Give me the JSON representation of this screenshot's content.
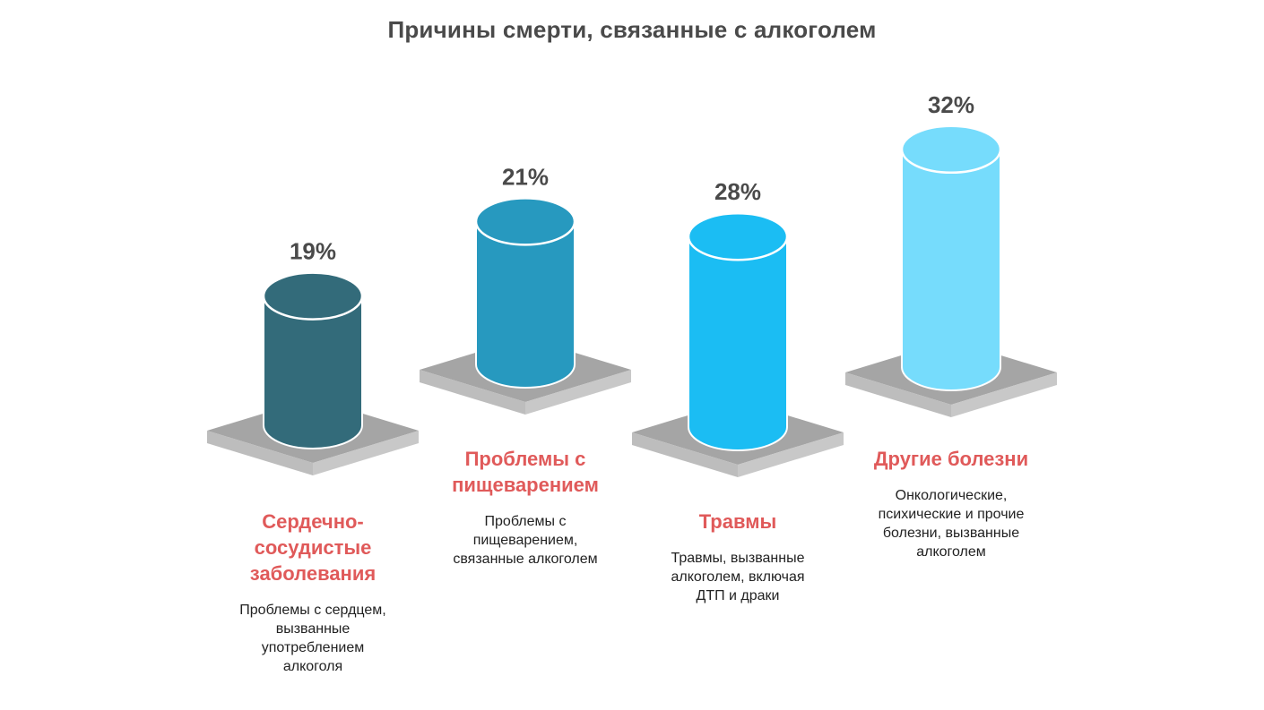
{
  "chart_data": {
    "type": "bar",
    "title": "Причины смерти, связанные с алкоголем",
    "categories": [
      "Сердечно-сосудистые заболевания",
      "Проблемы с пищеварением",
      "Травмы",
      "Другие болезни"
    ],
    "values": [
      19,
      21,
      28,
      32
    ],
    "value_labels": [
      "19%",
      "21%",
      "28%",
      "32%"
    ],
    "descriptions": [
      "Проблемы с сердцем, вызванные употреблением алкоголя",
      "Проблемы с пищеварением, связанные алкоголем",
      "Травмы, вызванные алкоголем, включая ДТП и драки",
      "Онкологические, психические и прочие болезни, вызванные алкоголем"
    ],
    "colors": [
      "#336b7a",
      "#2799bf",
      "#1bbdf3",
      "#76dcfc"
    ],
    "title_lines": [
      [
        "Сердечно-",
        "сосудистые",
        "заболевания"
      ],
      [
        "Проблемы с",
        "пищеварением"
      ],
      [
        "Травмы"
      ],
      [
        "Другие болезни"
      ]
    ],
    "description_lines": [
      [
        "Проблемы с сердцем,",
        "вызванные",
        "употреблением",
        "алкоголя"
      ],
      [
        "Проблемы с",
        "пищеварением,",
        "связанные алкоголем"
      ],
      [
        "Травмы, вызванные",
        "алкоголем, включая",
        "ДТП и драки"
      ],
      [
        "Онкологические,",
        "психические и прочие",
        "болезни, вызванные",
        "алкоголем"
      ]
    ],
    "grid": false,
    "legend": "none"
  },
  "colors": {
    "title_text": "#4a4a4a",
    "category_title": "#e05a5a",
    "description_text": "#222222",
    "platform_top": "#a5a5a5",
    "platform_side": "#bdbdbd"
  }
}
